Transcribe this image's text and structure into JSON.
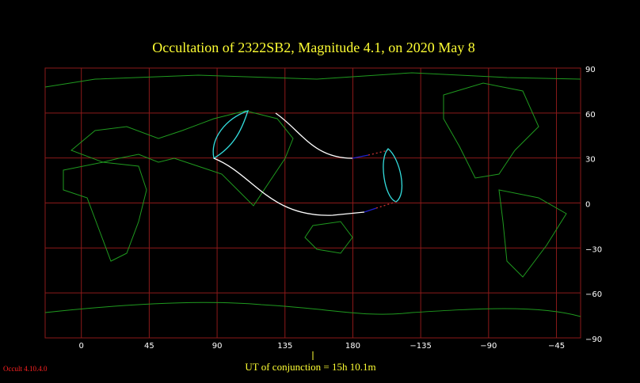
{
  "chart_data": {
    "type": "map",
    "title": "Occultation  of  2322SB2,      Magnitude 4.1,   on  2020 May  8",
    "xlim": [
      -24,
      331
    ],
    "ylim": [
      -90,
      90
    ],
    "xticks": [
      0,
      45,
      90,
      135,
      180,
      {
        "value": -135,
        "label": "−135"
      },
      {
        "value": -90,
        "label": "−90"
      },
      {
        "value": -45,
        "label": "−45"
      }
    ],
    "yticks": [
      90,
      60,
      30,
      0,
      {
        "value": -30,
        "label": "−30"
      },
      {
        "value": -60,
        "label": "−60"
      },
      {
        "value": -90,
        "label": "−90"
      }
    ],
    "grid": true,
    "conjunction_label": "UT of conjunction = 15h 10.1m",
    "version": "Occult 4.10.4.0"
  }
}
